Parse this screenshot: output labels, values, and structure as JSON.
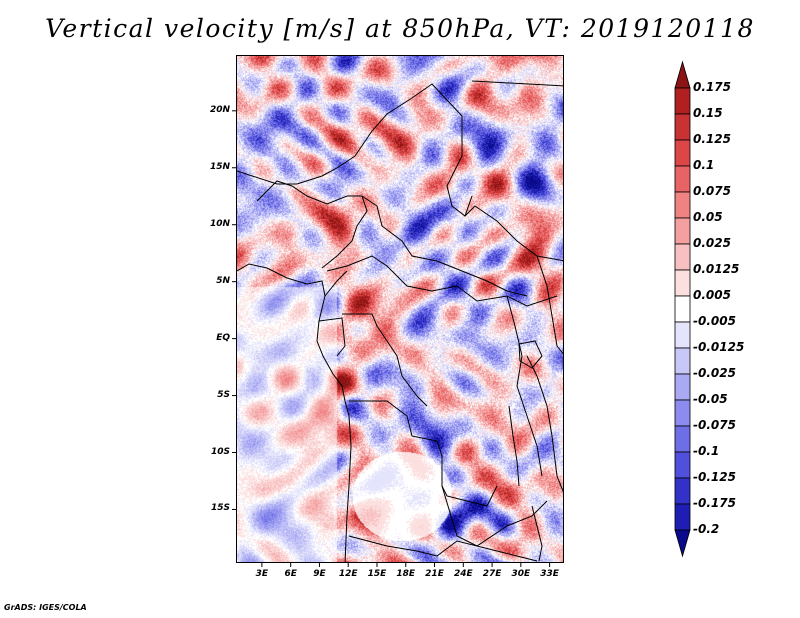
{
  "title": "Vertical velocity [m/s] at 850hPa, VT: 2019120118",
  "map": {
    "lat_labels": [
      "20N",
      "15N",
      "10N",
      "5N",
      "EQ",
      "5S",
      "10S",
      "15S"
    ],
    "lat_values": [
      20,
      15,
      10,
      5,
      0,
      -5,
      -10,
      -15
    ],
    "lon_labels": [
      "3E",
      "6E",
      "9E",
      "12E",
      "15E",
      "18E",
      "21E",
      "24E",
      "27E",
      "30E",
      "33E"
    ],
    "lon_values": [
      3,
      6,
      9,
      12,
      15,
      18,
      21,
      24,
      27,
      30,
      33
    ],
    "lat_range": [
      -19.7,
      24.9
    ],
    "lon_range": [
      0.3,
      34.5
    ]
  },
  "colorbar": {
    "labels": [
      "0.175",
      "0.15",
      "0.125",
      "0.1",
      "0.075",
      "0.05",
      "0.025",
      "0.0125",
      "0.005",
      "-0.005",
      "-0.0125",
      "-0.025",
      "-0.05",
      "-0.075",
      "-0.1",
      "-0.125",
      "-0.175",
      "-0.2"
    ],
    "colors": [
      "#8b1414",
      "#b02020",
      "#c83232",
      "#dc4646",
      "#e86464",
      "#f08282",
      "#f5a0a0",
      "#f8c0c0",
      "#fce0e0",
      "#ffffff",
      "#e4e4fc",
      "#c8c8f8",
      "#aaaaf4",
      "#8c8cee",
      "#6e6ee6",
      "#5050dc",
      "#3232c8",
      "#1e1eb4",
      "#0a0a8c"
    ]
  },
  "footer": "GrADS: IGES/COLA"
}
